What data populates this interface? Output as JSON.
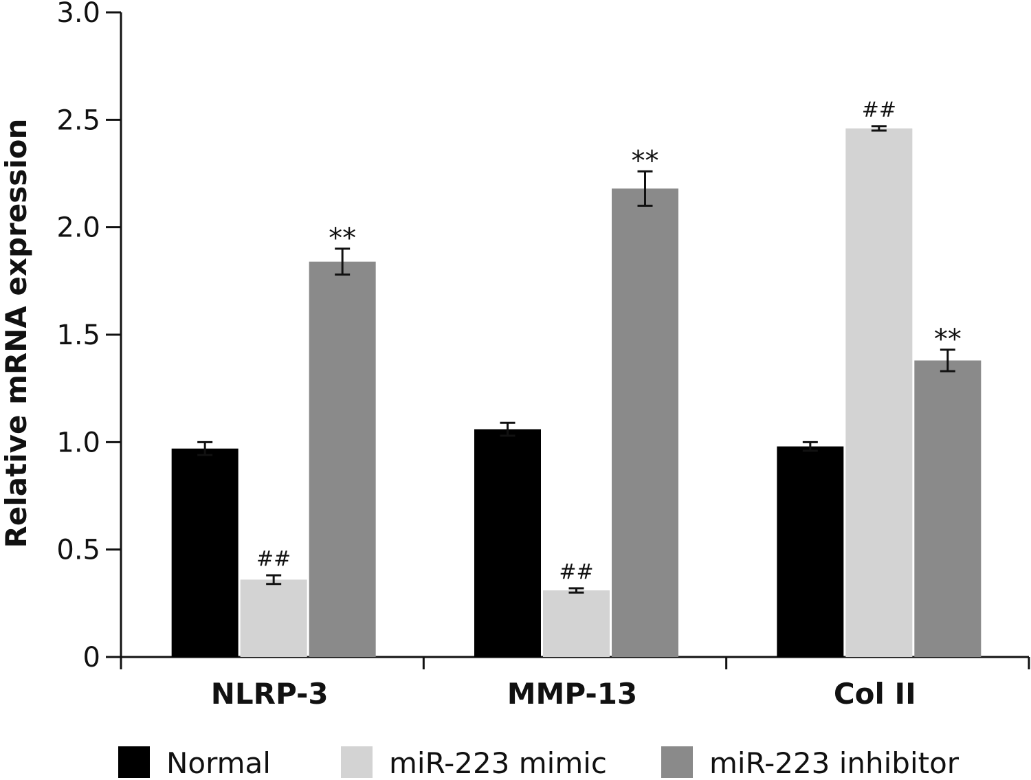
{
  "chart_data": {
    "type": "bar",
    "categories": [
      "NLRP-3",
      "MMP-13",
      "Col II"
    ],
    "series": [
      {
        "name": "Normal",
        "color": "#000000",
        "values": [
          0.97,
          1.06,
          0.98
        ],
        "errors": [
          0.03,
          0.03,
          0.02
        ],
        "annotations": [
          "",
          "",
          ""
        ]
      },
      {
        "name": "miR-223 mimic",
        "color": "#d3d3d3",
        "values": [
          0.36,
          0.31,
          2.46
        ],
        "errors": [
          0.02,
          0.01,
          0.01
        ],
        "annotations": [
          "##",
          "##",
          "##"
        ]
      },
      {
        "name": "miR-223 inhibitor",
        "color": "#8a8a8a",
        "values": [
          1.84,
          2.18,
          1.38
        ],
        "errors": [
          0.06,
          0.08,
          0.05
        ],
        "annotations": [
          "**",
          "**",
          "**"
        ]
      }
    ],
    "yticks": [
      "0",
      "0.5",
      "1.0",
      "1.5",
      "2.0",
      "2.5",
      "3.0"
    ],
    "ylim": [
      0,
      3.0
    ],
    "ylabel": "Relative mRNA expression",
    "xlabel": "",
    "legend_position": "bottom"
  }
}
